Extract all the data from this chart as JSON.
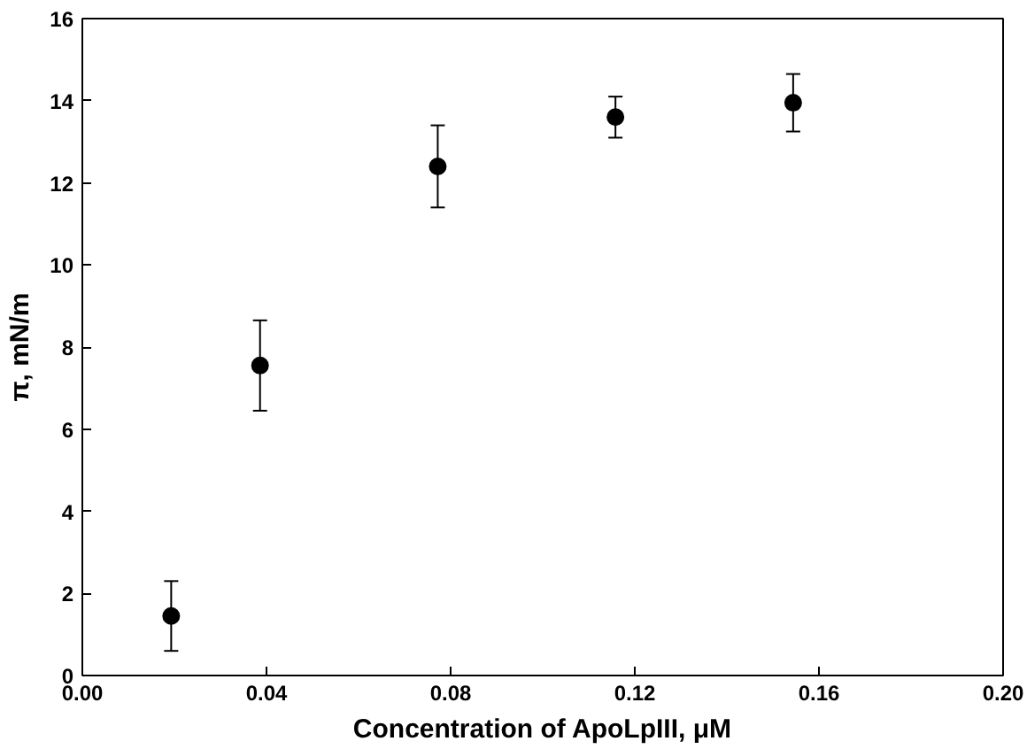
{
  "chart_data": {
    "type": "scatter",
    "xlabel": "Concentration of ApoLpIII, μM",
    "ylabel": "π, mN/m",
    "x": [
      0.0193,
      0.0386,
      0.0772,
      0.1158,
      0.1544
    ],
    "series": [
      {
        "color": "#000000",
        "values": [
          1.45,
          7.55,
          12.4,
          13.6,
          13.95
        ],
        "errors": [
          0.85,
          1.1,
          1.0,
          0.5,
          0.7
        ]
      }
    ],
    "xlim": [
      0,
      0.2
    ],
    "xticks": [
      {
        "value": 0,
        "label": "0.00"
      },
      {
        "value": 0.04,
        "label": "0.04"
      },
      {
        "value": 0.08,
        "label": "0.08"
      },
      {
        "value": 0.12,
        "label": "0.12"
      },
      {
        "value": 0.16,
        "label": "0.16"
      },
      {
        "value": 0.2,
        "label": "0.20"
      }
    ],
    "ylim": [
      0,
      16
    ],
    "yticks": [
      0,
      2,
      4,
      6,
      8,
      10,
      12,
      14,
      16
    ],
    "marker": "circle",
    "grid": false
  }
}
